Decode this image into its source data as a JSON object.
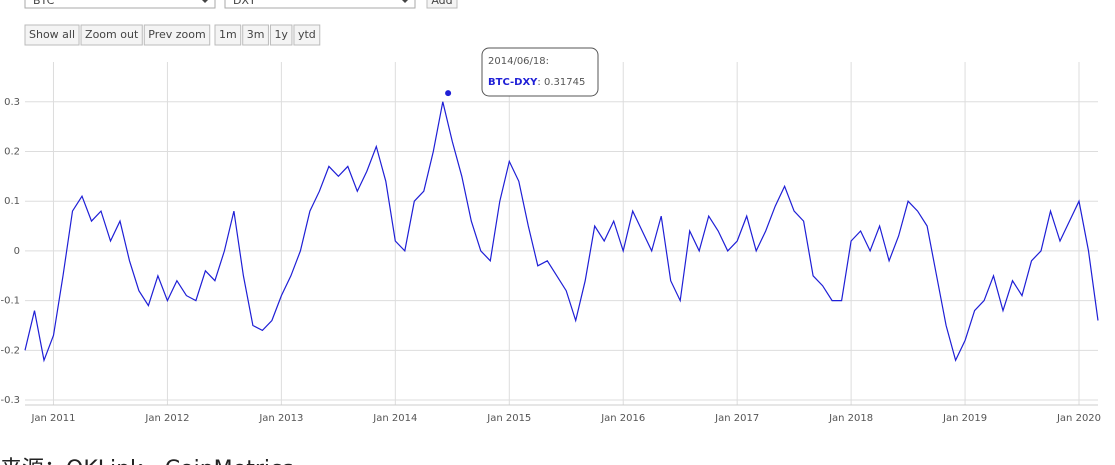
{
  "ui": {
    "selects": [
      "BTC",
      "DXY"
    ],
    "add": "Add",
    "buttons": [
      "Show all",
      "Zoom out",
      "Prev zoom"
    ],
    "ranges": [
      "1m",
      "3m",
      "1y",
      "ytd"
    ]
  },
  "caption": "来源：OKLink、CoinMetrics",
  "chart_data": {
    "type": "line",
    "x": [
      "2010-10",
      "2010-11",
      "2010-12",
      "2011-01",
      "2011-02",
      "2011-03",
      "2011-04",
      "2011-05",
      "2011-06",
      "2011-07",
      "2011-08",
      "2011-09",
      "2011-10",
      "2011-11",
      "2011-12",
      "2012-01",
      "2012-02",
      "2012-03",
      "2012-04",
      "2012-05",
      "2012-06",
      "2012-07",
      "2012-08",
      "2012-09",
      "2012-10",
      "2012-11",
      "2012-12",
      "2013-01",
      "2013-02",
      "2013-03",
      "2013-04",
      "2013-05",
      "2013-06",
      "2013-07",
      "2013-08",
      "2013-09",
      "2013-10",
      "2013-11",
      "2013-12",
      "2014-01",
      "2014-02",
      "2014-03",
      "2014-04",
      "2014-05",
      "2014-06",
      "2014-07",
      "2014-08",
      "2014-09",
      "2014-10",
      "2014-11",
      "2014-12",
      "2015-01",
      "2015-02",
      "2015-03",
      "2015-04",
      "2015-05",
      "2015-06",
      "2015-07",
      "2015-08",
      "2015-09",
      "2015-10",
      "2015-11",
      "2015-12",
      "2016-01",
      "2016-02",
      "2016-03",
      "2016-04",
      "2016-05",
      "2016-06",
      "2016-07",
      "2016-08",
      "2016-09",
      "2016-10",
      "2016-11",
      "2016-12",
      "2017-01",
      "2017-02",
      "2017-03",
      "2017-04",
      "2017-05",
      "2017-06",
      "2017-07",
      "2017-08",
      "2017-09",
      "2017-10",
      "2017-11",
      "2017-12",
      "2018-01",
      "2018-02",
      "2018-03",
      "2018-04",
      "2018-05",
      "2018-06",
      "2018-07",
      "2018-08",
      "2018-09",
      "2018-10",
      "2018-11",
      "2018-12",
      "2019-01",
      "2019-02",
      "2019-03",
      "2019-04",
      "2019-05",
      "2019-06",
      "2019-07",
      "2019-08",
      "2019-09",
      "2019-10",
      "2019-11",
      "2019-12",
      "2020-01",
      "2020-02",
      "2020-03"
    ],
    "series": [
      {
        "name": "BTC-DXY",
        "color": "#1f1fd6",
        "values": [
          -0.2,
          -0.12,
          -0.22,
          -0.17,
          -0.05,
          0.08,
          0.11,
          0.06,
          0.08,
          0.02,
          0.06,
          -0.02,
          -0.08,
          -0.11,
          -0.05,
          -0.1,
          -0.06,
          -0.09,
          -0.1,
          -0.04,
          -0.06,
          0.0,
          0.08,
          -0.05,
          -0.15,
          -0.16,
          -0.14,
          -0.09,
          -0.05,
          0.0,
          0.08,
          0.12,
          0.17,
          0.15,
          0.17,
          0.12,
          0.16,
          0.21,
          0.14,
          0.02,
          0.0,
          0.1,
          0.12,
          0.2,
          0.3,
          0.22,
          0.15,
          0.06,
          0.0,
          -0.02,
          0.1,
          0.18,
          0.14,
          0.05,
          -0.03,
          -0.02,
          -0.05,
          -0.08,
          -0.14,
          -0.06,
          0.05,
          0.02,
          0.06,
          0.0,
          0.08,
          0.04,
          0.0,
          0.07,
          -0.06,
          -0.1,
          0.04,
          0.0,
          0.07,
          0.04,
          0.0,
          0.02,
          0.07,
          0.0,
          0.04,
          0.09,
          0.13,
          0.08,
          0.06,
          -0.05,
          -0.07,
          -0.1,
          -0.1,
          0.02,
          0.04,
          0.0,
          0.05,
          -0.02,
          0.03,
          0.1,
          0.08,
          0.05,
          -0.05,
          -0.15,
          -0.22,
          -0.18,
          -0.12,
          -0.1,
          -0.05,
          -0.12,
          -0.06,
          -0.09,
          -0.02,
          0.0,
          0.08,
          0.02,
          0.06,
          0.1,
          0.0,
          -0.14
        ]
      }
    ],
    "xticks": [
      {
        "value": "2011-01",
        "label": "Jan 2011"
      },
      {
        "value": "2012-01",
        "label": "Jan 2012"
      },
      {
        "value": "2013-01",
        "label": "Jan 2013"
      },
      {
        "value": "2014-01",
        "label": "Jan 2014"
      },
      {
        "value": "2015-01",
        "label": "Jan 2015"
      },
      {
        "value": "2016-01",
        "label": "Jan 2016"
      },
      {
        "value": "2017-01",
        "label": "Jan 2017"
      },
      {
        "value": "2018-01",
        "label": "Jan 2018"
      },
      {
        "value": "2019-01",
        "label": "Jan 2019"
      },
      {
        "value": "2020-01",
        "label": "Jan 2020"
      }
    ],
    "xlim": [
      "2010-10",
      "2020-03"
    ],
    "ylim": [
      -0.31,
      0.38
    ],
    "yticks": [
      -0.3,
      -0.2,
      -0.1,
      0,
      0.1,
      0.2,
      0.3
    ],
    "grid": true,
    "tooltip": {
      "date": "2014/06/18:",
      "value": 0.31745,
      "value_label": ": 0.31745"
    }
  }
}
